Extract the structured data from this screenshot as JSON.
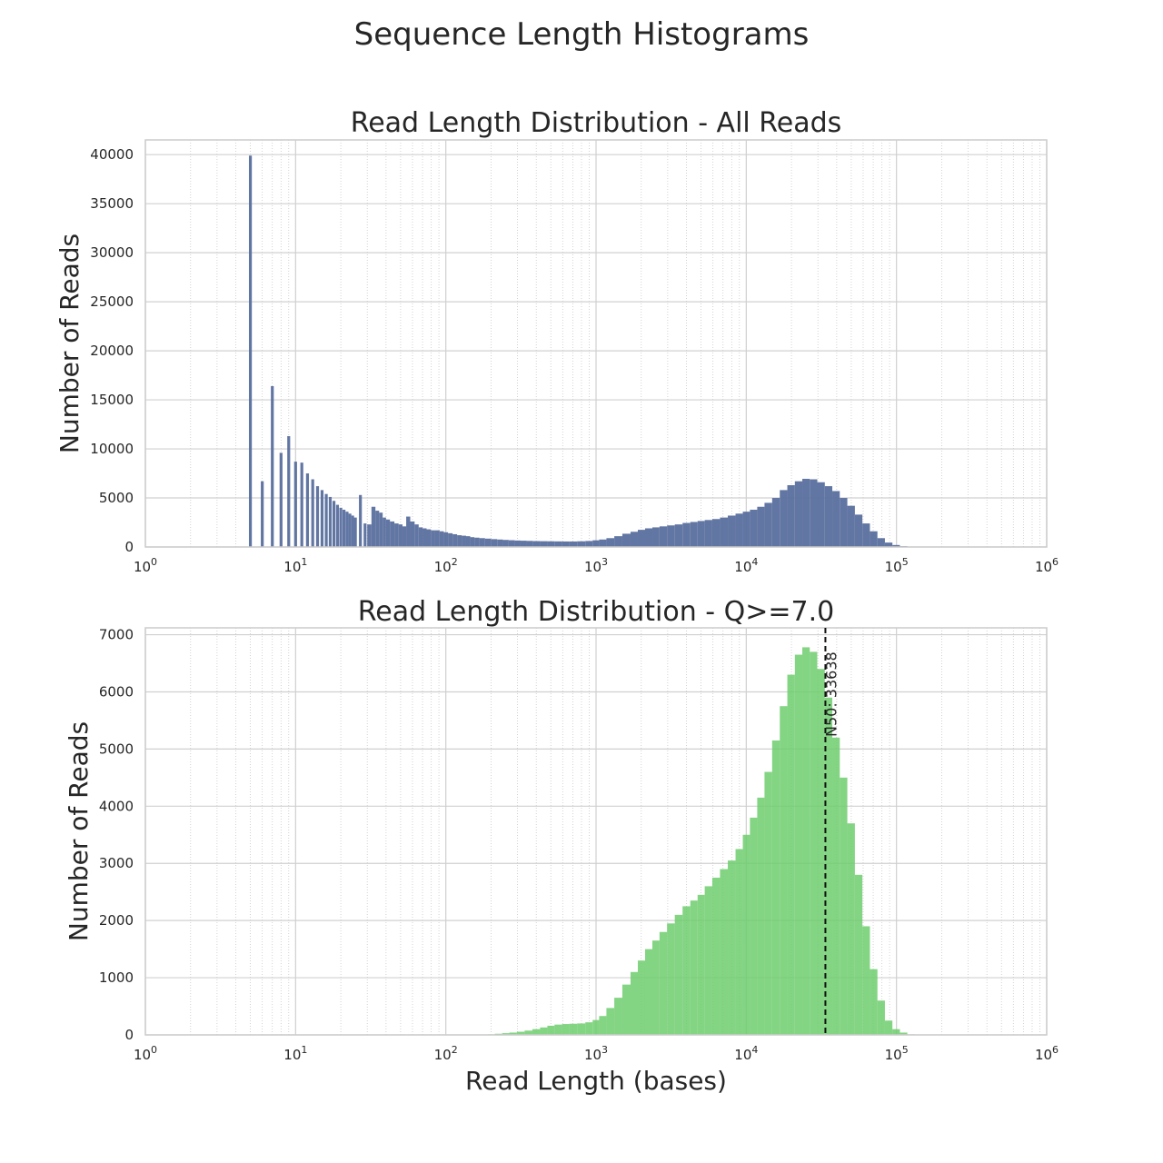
{
  "figure": {
    "suptitle": "Sequence Length Histograms"
  },
  "chart_data": [
    {
      "type": "bar",
      "title": "Read Length Distribution - All Reads",
      "xlabel": "",
      "ylabel": "Number of Reads",
      "xscale": "log",
      "xlim": [
        1,
        1000000
      ],
      "ylim": [
        0,
        41500
      ],
      "x_ticks": [
        {
          "base": "10",
          "exp": "0"
        },
        {
          "base": "10",
          "exp": "1"
        },
        {
          "base": "10",
          "exp": "2"
        },
        {
          "base": "10",
          "exp": "3"
        },
        {
          "base": "10",
          "exp": "4"
        },
        {
          "base": "10",
          "exp": "5"
        },
        {
          "base": "10",
          "exp": "6"
        }
      ],
      "y_ticks": [
        "0",
        "5000",
        "10000",
        "15000",
        "20000",
        "25000",
        "30000",
        "35000",
        "40000"
      ],
      "grid": true,
      "color": "#5a6f9e",
      "series": [
        {
          "points": [
            [
              5,
              39900
            ],
            [
              6,
              6700
            ],
            [
              7,
              16400
            ],
            [
              8,
              9600
            ],
            [
              9,
              11300
            ],
            [
              10,
              8700
            ],
            [
              11,
              8600
            ],
            [
              12,
              7500
            ],
            [
              13,
              6900
            ],
            [
              14,
              6200
            ],
            [
              15,
              5800
            ],
            [
              16,
              5400
            ],
            [
              17,
              5100
            ],
            [
              18,
              4700
            ],
            [
              19,
              4300
            ],
            [
              20,
              4000
            ],
            [
              21,
              3800
            ],
            [
              22,
              3600
            ],
            [
              23,
              3400
            ],
            [
              24,
              3200
            ],
            [
              25,
              3000
            ],
            [
              27,
              5300
            ],
            [
              29,
              2400
            ],
            [
              31,
              2300
            ],
            [
              33,
              4100
            ],
            [
              35,
              3700
            ],
            [
              37,
              3500
            ],
            [
              39,
              3000
            ],
            [
              41,
              2800
            ],
            [
              44,
              2600
            ],
            [
              47,
              2400
            ],
            [
              50,
              2300
            ],
            [
              53,
              2100
            ],
            [
              56,
              3100
            ],
            [
              60,
              2600
            ],
            [
              64,
              2300
            ],
            [
              68,
              2000
            ],
            [
              72,
              1900
            ],
            [
              77,
              1800
            ],
            [
              82,
              1700
            ],
            [
              88,
              1700
            ],
            [
              94,
              1600
            ],
            [
              100,
              1500
            ],
            [
              107,
              1400
            ],
            [
              115,
              1300
            ],
            [
              123,
              1200
            ],
            [
              132,
              1150
            ],
            [
              141,
              1100
            ],
            [
              150,
              1000
            ],
            [
              160,
              950
            ],
            [
              175,
              900
            ],
            [
              190,
              850
            ],
            [
              210,
              800
            ],
            [
              230,
              760
            ],
            [
              250,
              720
            ],
            [
              275,
              690
            ],
            [
              300,
              660
            ],
            [
              330,
              640
            ],
            [
              360,
              620
            ],
            [
              400,
              600
            ],
            [
              450,
              590
            ],
            [
              500,
              580
            ],
            [
              560,
              570
            ],
            [
              630,
              560
            ],
            [
              700,
              560
            ],
            [
              800,
              580
            ],
            [
              900,
              610
            ],
            [
              1000,
              680
            ],
            [
              1100,
              760
            ],
            [
              1250,
              900
            ],
            [
              1400,
              1100
            ],
            [
              1600,
              1350
            ],
            [
              1800,
              1550
            ],
            [
              2000,
              1750
            ],
            [
              2250,
              1900
            ],
            [
              2500,
              2000
            ],
            [
              2800,
              2100
            ],
            [
              3150,
              2200
            ],
            [
              3550,
              2300
            ],
            [
              4000,
              2450
            ],
            [
              4500,
              2550
            ],
            [
              5000,
              2650
            ],
            [
              5600,
              2750
            ],
            [
              6300,
              2850
            ],
            [
              7100,
              3000
            ],
            [
              8000,
              3200
            ],
            [
              9000,
              3400
            ],
            [
              10000,
              3600
            ],
            [
              11200,
              3800
            ],
            [
              12500,
              4100
            ],
            [
              14000,
              4500
            ],
            [
              15800,
              5000
            ],
            [
              17700,
              5800
            ],
            [
              19900,
              6300
            ],
            [
              22300,
              6700
            ],
            [
              25000,
              6950
            ],
            [
              28000,
              6900
            ],
            [
              31500,
              6600
            ],
            [
              35300,
              6200
            ],
            [
              39600,
              5700
            ],
            [
              44400,
              5000
            ],
            [
              49900,
              4200
            ],
            [
              56000,
              3300
            ],
            [
              62800,
              2400
            ],
            [
              70500,
              1600
            ],
            [
              79100,
              900
            ],
            [
              88700,
              450
            ],
            [
              99500,
              200
            ],
            [
              111600,
              80
            ],
            [
              125000,
              30
            ]
          ]
        }
      ]
    },
    {
      "type": "bar",
      "title": "Read Length Distribution - Q>=7.0",
      "xlabel": "Read Length (bases)",
      "ylabel": "Number of Reads",
      "xscale": "log",
      "xlim": [
        1,
        1000000
      ],
      "ylim": [
        0,
        7120
      ],
      "x_ticks": [
        {
          "base": "10",
          "exp": "0"
        },
        {
          "base": "10",
          "exp": "1"
        },
        {
          "base": "10",
          "exp": "2"
        },
        {
          "base": "10",
          "exp": "3"
        },
        {
          "base": "10",
          "exp": "4"
        },
        {
          "base": "10",
          "exp": "5"
        },
        {
          "base": "10",
          "exp": "6"
        }
      ],
      "y_ticks": [
        "0",
        "1000",
        "2000",
        "3000",
        "4000",
        "5000",
        "6000",
        "7000"
      ],
      "grid": true,
      "color": "#6dcc6d",
      "annotation": {
        "x": 33638,
        "label": "N50: 33638",
        "style": "dashed-vertical-line"
      },
      "series": [
        {
          "points": [
            [
              180,
              5
            ],
            [
              200,
              10
            ],
            [
              225,
              20
            ],
            [
              250,
              30
            ],
            [
              280,
              40
            ],
            [
              315,
              55
            ],
            [
              355,
              75
            ],
            [
              400,
              100
            ],
            [
              450,
              130
            ],
            [
              500,
              160
            ],
            [
              560,
              180
            ],
            [
              630,
              190
            ],
            [
              700,
              195
            ],
            [
              800,
              200
            ],
            [
              900,
              220
            ],
            [
              1000,
              260
            ],
            [
              1100,
              330
            ],
            [
              1250,
              470
            ],
            [
              1400,
              650
            ],
            [
              1600,
              880
            ],
            [
              1800,
              1100
            ],
            [
              2000,
              1300
            ],
            [
              2250,
              1500
            ],
            [
              2500,
              1650
            ],
            [
              2800,
              1800
            ],
            [
              3150,
              1950
            ],
            [
              3550,
              2100
            ],
            [
              4000,
              2250
            ],
            [
              4500,
              2350
            ],
            [
              5000,
              2450
            ],
            [
              5600,
              2600
            ],
            [
              6300,
              2750
            ],
            [
              7100,
              2900
            ],
            [
              8000,
              3050
            ],
            [
              9000,
              3250
            ],
            [
              10000,
              3500
            ],
            [
              11200,
              3800
            ],
            [
              12500,
              4150
            ],
            [
              14000,
              4600
            ],
            [
              15800,
              5150
            ],
            [
              17700,
              5750
            ],
            [
              19900,
              6300
            ],
            [
              22300,
              6650
            ],
            [
              25000,
              6780
            ],
            [
              28000,
              6700
            ],
            [
              31500,
              6400
            ],
            [
              35300,
              5900
            ],
            [
              39600,
              5200
            ],
            [
              44400,
              4500
            ],
            [
              49900,
              3700
            ],
            [
              56000,
              2800
            ],
            [
              62800,
              1900
            ],
            [
              70500,
              1150
            ],
            [
              79100,
              600
            ],
            [
              88700,
              250
            ],
            [
              99500,
              100
            ],
            [
              111600,
              40
            ],
            [
              125000,
              10
            ]
          ]
        }
      ]
    }
  ]
}
